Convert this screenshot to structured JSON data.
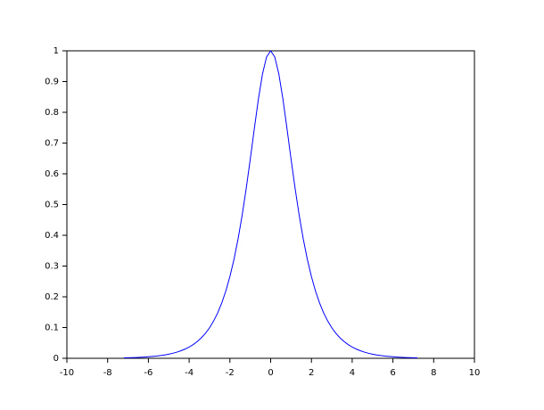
{
  "chart_data": {
    "type": "line",
    "x": [
      -7.2,
      -7.0,
      -6.8,
      -6.6,
      -6.4,
      -6.2,
      -6.0,
      -5.8,
      -5.6,
      -5.4,
      -5.2,
      -5.0,
      -4.8,
      -4.6,
      -4.4,
      -4.2,
      -4.0,
      -3.8,
      -3.6,
      -3.4,
      -3.2,
      -3.0,
      -2.8,
      -2.6,
      -2.4,
      -2.2,
      -2.0,
      -1.8,
      -1.6,
      -1.4,
      -1.2,
      -1.0,
      -0.8,
      -0.6,
      -0.4,
      -0.2,
      0,
      0.2,
      0.4,
      0.6,
      0.8,
      1.0,
      1.2,
      1.4,
      1.6,
      1.8,
      2.0,
      2.2,
      2.4,
      2.6,
      2.8,
      3.0,
      3.2,
      3.4,
      3.6,
      3.8,
      4.0,
      4.2,
      4.4,
      4.6,
      4.8,
      5.0,
      5.2,
      5.4,
      5.6,
      5.8,
      6.0,
      6.2,
      6.4,
      6.6,
      6.8,
      7.0,
      7.2
    ],
    "values": [
      0.0015,
      0.0018,
      0.0022,
      0.0027,
      0.0033,
      0.0041,
      0.005,
      0.0061,
      0.0074,
      0.009,
      0.011,
      0.0135,
      0.0165,
      0.0201,
      0.0246,
      0.03,
      0.0366,
      0.0447,
      0.0546,
      0.0667,
      0.0814,
      0.0993,
      0.1212,
      0.1477,
      0.18,
      0.2189,
      0.2658,
      0.3218,
      0.388,
      0.4649,
      0.5523,
      0.6481,
      0.7477,
      0.8436,
      0.925,
      0.9803,
      1,
      0.9803,
      0.925,
      0.8436,
      0.7477,
      0.6481,
      0.5523,
      0.4649,
      0.388,
      0.3218,
      0.2658,
      0.2189,
      0.18,
      0.1477,
      0.1212,
      0.0993,
      0.0814,
      0.0667,
      0.0546,
      0.0447,
      0.0366,
      0.03,
      0.0246,
      0.0201,
      0.0165,
      0.0135,
      0.011,
      0.009,
      0.0074,
      0.0061,
      0.005,
      0.0041,
      0.0033,
      0.0027,
      0.0022,
      0.0018,
      0.0015
    ],
    "color": "#0000ff",
    "xlim": [
      -10,
      10
    ],
    "xticks": [
      -10,
      -8,
      -6,
      -4,
      -2,
      0,
      2,
      4,
      6,
      8,
      10
    ],
    "ylim": [
      0,
      1
    ],
    "yticks": [
      0,
      0.1,
      0.2,
      0.3,
      0.4,
      0.5,
      0.6,
      0.7,
      0.8,
      0.9,
      1
    ],
    "grid": false
  }
}
